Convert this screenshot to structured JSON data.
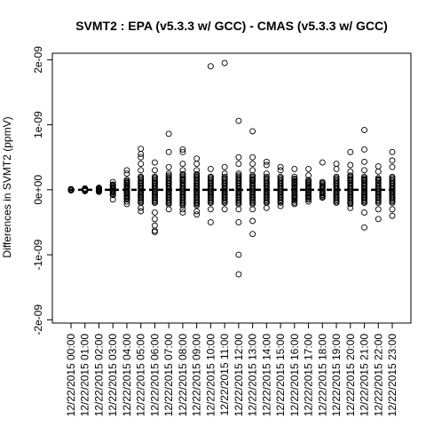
{
  "chart_data": {
    "type": "scatter",
    "title": "SVMT2 : EPA (v5.3.3 w/ GCC) - CMAS (v5.3.3 w/ GCC)",
    "xlabel": "",
    "ylabel": "Differences in SVMT2 (ppmV)",
    "ylim": [
      -2.05e-09,
      2.1e-09
    ],
    "y_ticks": [
      {
        "value": -2e-09,
        "label": "-2e-09"
      },
      {
        "value": -1e-09,
        "label": "-1e-09"
      },
      {
        "value": 0,
        "label": "0e+00"
      },
      {
        "value": 1e-09,
        "label": "1e-09"
      },
      {
        "value": 2e-09,
        "label": "2e-09"
      }
    ],
    "categories": [
      "12/22/2015 00:00",
      "12/22/2015 01:00",
      "12/22/2015 02:00",
      "12/22/2015 03:00",
      "12/22/2015 04:00",
      "12/22/2015 05:00",
      "12/22/2015 06:00",
      "12/22/2015 07:00",
      "12/22/2015 08:00",
      "12/22/2015 09:00",
      "12/22/2015 10:00",
      "12/22/2015 11:00",
      "12/22/2015 12:00",
      "12/22/2015 13:00",
      "12/22/2015 14:00",
      "12/22/2015 15:00",
      "12/22/2015 16:00",
      "12/22/2015 17:00",
      "12/22/2015 18:00",
      "12/22/2015 19:00",
      "12/22/2015 20:00",
      "12/22/2015 21:00",
      "12/22/2015 22:00",
      "12/22/2015 23:00"
    ],
    "series": [
      {
        "category": "12/22/2015 00:00",
        "values": [
          0,
          0,
          0,
          0,
          0
        ]
      },
      {
        "category": "12/22/2015 01:00",
        "values": [
          1e-11,
          -1e-11,
          2e-11,
          -2e-11,
          0
        ]
      },
      {
        "category": "12/22/2015 02:00",
        "values": [
          3e-11,
          -3e-11,
          2e-11,
          -2e-11,
          1e-11,
          -1e-11,
          0
        ]
      },
      {
        "category": "12/22/2015 03:00",
        "values": [
          1.2e-10,
          7e-11,
          3e-11,
          -3e-11,
          -8e-11,
          -1.5e-10,
          0
        ]
      },
      {
        "category": "12/22/2015 04:00",
        "values": [
          3e-10,
          2.5e-10,
          1.5e-10,
          1e-10,
          5e-11,
          -5e-11,
          -1e-10,
          -1.8e-10,
          -2.2e-10
        ]
      },
      {
        "category": "12/22/2015 05:00",
        "values": [
          6.3e-10,
          5.5e-10,
          5e-10,
          4e-10,
          3e-10,
          2e-10,
          1e-10,
          -1e-10,
          -2e-10,
          -2.8e-10,
          -3.3e-10
        ]
      },
      {
        "category": "12/22/2015 06:00",
        "values": [
          4.2e-10,
          3e-10,
          2e-10,
          1e-10,
          -1e-10,
          -2e-10,
          -3.5e-10,
          -4.5e-10,
          -5.5e-10,
          -6.3e-10,
          -6.5e-10
        ]
      },
      {
        "category": "12/22/2015 07:00",
        "values": [
          8.6e-10,
          5.8e-10,
          3.5e-10,
          2.5e-10,
          1e-10,
          -1e-10,
          -2e-10,
          -3e-10
        ]
      },
      {
        "category": "12/22/2015 08:00",
        "values": [
          6.2e-10,
          5.8e-10,
          4e-10,
          3e-10,
          1.5e-10,
          -1e-10,
          -2e-10,
          -3e-10,
          -3.5e-10
        ]
      },
      {
        "category": "12/22/2015 09:00",
        "values": [
          4.8e-10,
          4e-10,
          3e-10,
          2e-10,
          1e-10,
          -1e-10,
          -2e-10,
          -3.3e-10,
          -3.8e-10
        ]
      },
      {
        "category": "12/22/2015 10:00",
        "values": [
          1.9e-09,
          3.2e-10,
          2e-10,
          1e-10,
          -1e-10,
          -2e-10,
          -3e-10,
          -5e-10
        ]
      },
      {
        "category": "12/22/2015 11:00",
        "values": [
          1.95e-09,
          3.5e-10,
          2.5e-10,
          1e-10,
          -1e-10,
          -2e-10,
          -3e-10
        ]
      },
      {
        "category": "12/22/2015 12:00",
        "values": [
          1.06e-09,
          5e-10,
          4e-10,
          2.5e-10,
          1e-10,
          -1e-10,
          -3e-10,
          -5e-10,
          -1e-09,
          -1.3e-09
        ]
      },
      {
        "category": "12/22/2015 13:00",
        "values": [
          9e-10,
          5e-10,
          4e-10,
          3e-10,
          1.5e-10,
          -1e-10,
          -3e-10,
          -4.8e-10,
          -6.8e-10
        ]
      },
      {
        "category": "12/22/2015 14:00",
        "values": [
          4.3e-10,
          3.8e-10,
          2.5e-10,
          1e-10,
          -1e-10,
          -2e-10,
          -2.8e-10
        ]
      },
      {
        "category": "12/22/2015 15:00",
        "values": [
          3.5e-10,
          3e-10,
          2e-10,
          1e-10,
          -1e-10,
          -2e-10,
          -2.5e-10
        ]
      },
      {
        "category": "12/22/2015 16:00",
        "values": [
          3.2e-10,
          2e-10,
          1e-10,
          -1e-10,
          -2e-10,
          -2.2e-10
        ]
      },
      {
        "category": "12/22/2015 17:00",
        "values": [
          3.2e-10,
          2.2e-10,
          1e-10,
          -1e-10,
          -1.8e-10
        ]
      },
      {
        "category": "12/22/2015 18:00",
        "values": [
          4.2e-10,
          1e-10,
          5e-11,
          -5e-11,
          -1e-10,
          -1.2e-10
        ]
      },
      {
        "category": "12/22/2015 19:00",
        "values": [
          4e-10,
          3.2e-10,
          2e-10,
          1e-10,
          -1e-10,
          -2e-10
        ]
      },
      {
        "category": "12/22/2015 20:00",
        "values": [
          5.8e-10,
          3.8e-10,
          2.8e-10,
          1.5e-10,
          -1e-10,
          -2e-10,
          -2.8e-10
        ]
      },
      {
        "category": "12/22/2015 21:00",
        "values": [
          9.2e-10,
          6.2e-10,
          4.3e-10,
          3e-10,
          1.5e-10,
          -1e-10,
          -2e-10,
          -3.5e-10,
          -5.8e-10
        ]
      },
      {
        "category": "12/22/2015 22:00",
        "values": [
          3.6e-10,
          2.8e-10,
          1.5e-10,
          -1e-10,
          -2e-10,
          -3e-10,
          -4.5e-10
        ]
      },
      {
        "category": "12/22/2015 23:00",
        "values": [
          5.8e-10,
          4.5e-10,
          3.5e-10,
          2e-10,
          1e-10,
          -1e-10,
          -2e-10,
          -3e-10,
          -4e-10
        ]
      }
    ],
    "spread": [
      1e-11,
      2e-11,
      3e-11,
      8e-11,
      1.5e-10,
      2e-10,
      2e-10,
      2.2e-10,
      2.4e-10,
      2.4e-10,
      2e-10,
      2e-10,
      2.2e-10,
      2.2e-10,
      2e-10,
      1.8e-10,
      1.7e-10,
      1.5e-10,
      1.2e-10,
      1.8e-10,
      2.2e-10,
      2e-10,
      1.8e-10,
      1.8e-10
    ],
    "zero_line": {
      "value": 0,
      "style": "dashed"
    },
    "grid": false,
    "legend": "none"
  }
}
